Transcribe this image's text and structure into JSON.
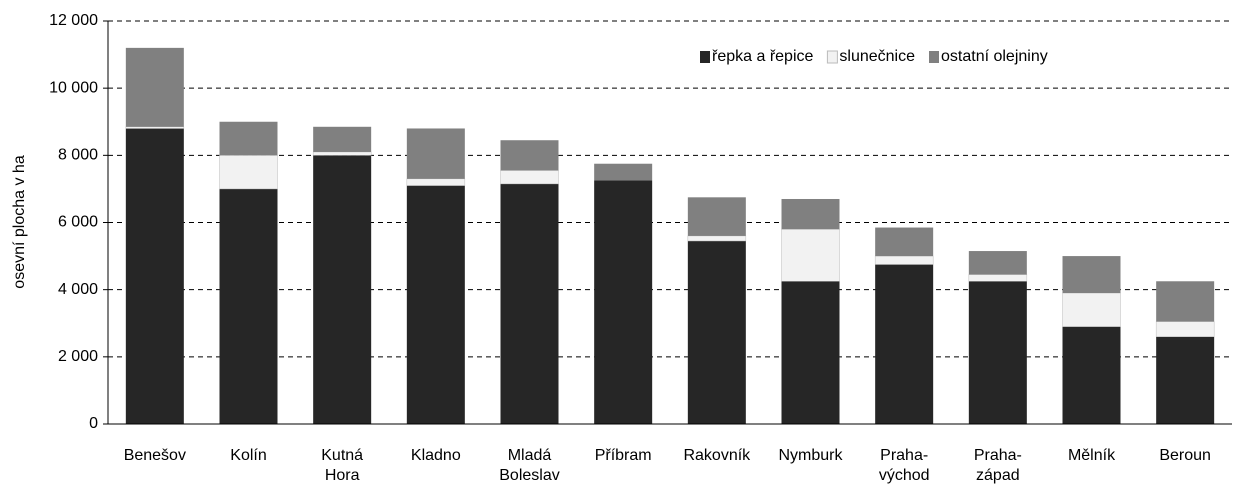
{
  "chart_data": {
    "type": "stacked_bar",
    "y_label": "osevní plocha v ha",
    "categories": [
      "Benešov",
      "Kolín",
      "Kutná\nHora",
      "Kladno",
      "Mladá\nBoleslav",
      "Příbram",
      "Rakovník",
      "Nymburk",
      "Praha-\nvýchod",
      "Praha-\nzápad",
      "Mělník",
      "Beroun"
    ],
    "series": [
      {
        "name": "řepka a řepice",
        "color": "#262626",
        "values": [
          8800,
          7000,
          8000,
          7100,
          7150,
          7250,
          5450,
          4250,
          4750,
          4250,
          2900,
          2600
        ]
      },
      {
        "name": "slunečnice",
        "color": "#f2f2f2",
        "values": [
          50,
          1000,
          100,
          200,
          400,
          0,
          150,
          1550,
          250,
          200,
          1000,
          450
        ]
      },
      {
        "name": "ostatní olejniny",
        "color": "#808080",
        "values": [
          2350,
          1000,
          750,
          1500,
          900,
          500,
          1150,
          900,
          850,
          700,
          1100,
          1200
        ]
      }
    ],
    "ylim": [
      0,
      12000
    ],
    "yticks": [
      0,
      {
        "value": 2000,
        "label": "2 000"
      },
      {
        "value": 4000,
        "label": "4 000"
      },
      {
        "value": 6000,
        "label": "6 000"
      },
      {
        "value": 8000,
        "label": "8 000"
      },
      {
        "value": 10000,
        "label": "10 000"
      },
      {
        "value": 12000,
        "label": "12 000"
      }
    ],
    "grid": true,
    "legend": "top-right"
  }
}
